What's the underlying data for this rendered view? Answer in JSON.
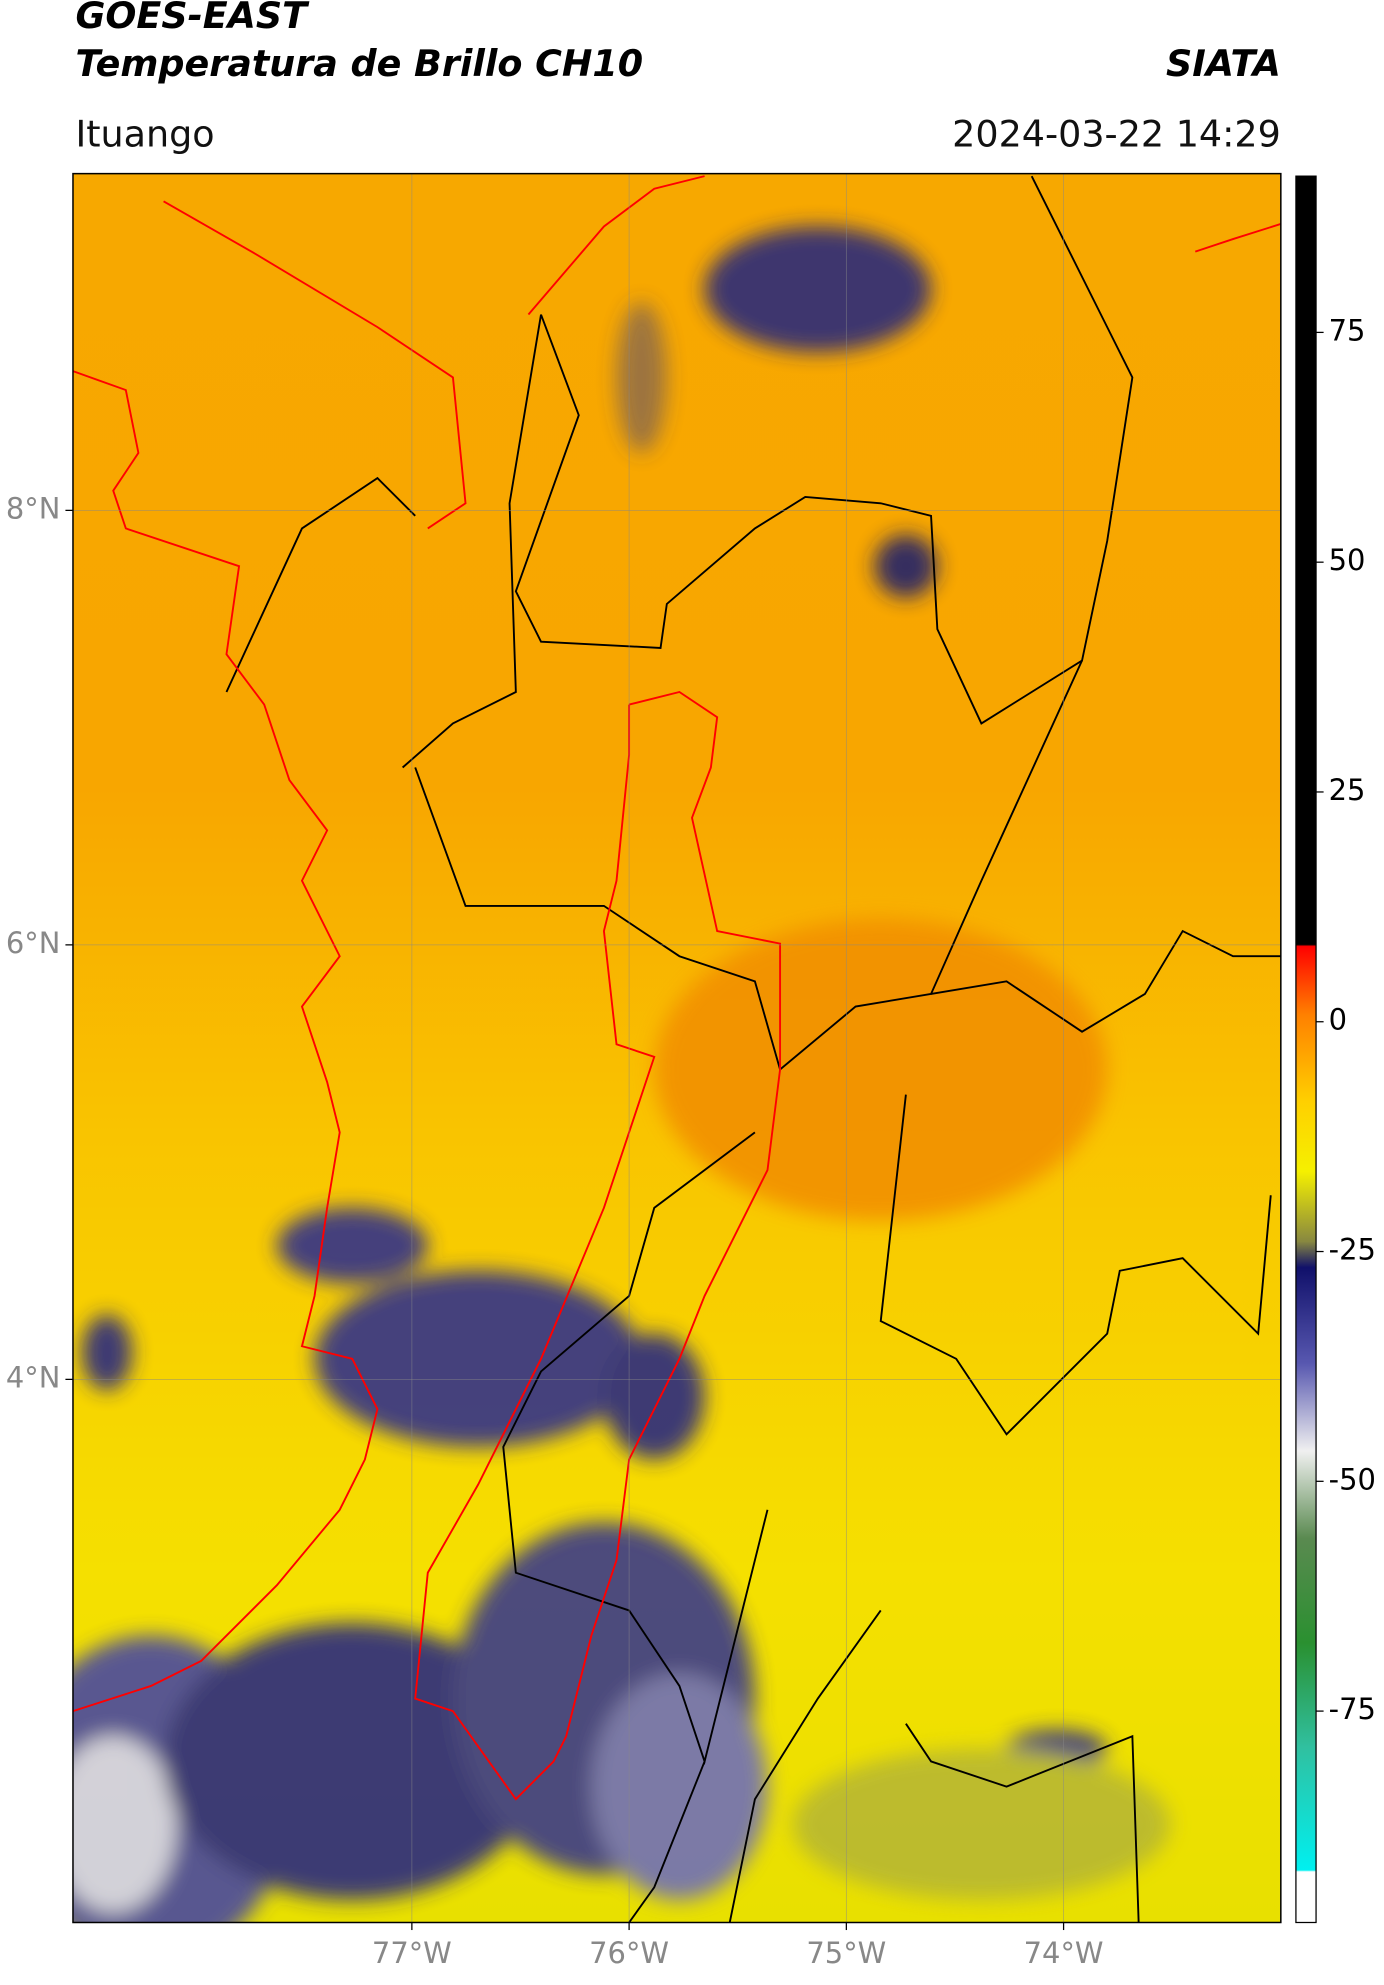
{
  "header": {
    "title": "GOES-EAST",
    "subtitle": "Temperatura de Brillo CH10",
    "source": "SIATA",
    "location": "Ituango",
    "datetime": "2024-03-22 14:29"
  },
  "map": {
    "xlim": [
      -78.56,
      -73.0
    ],
    "ylim": [
      1.5,
      9.55
    ],
    "xticks": [
      {
        "value": -77,
        "label": "77°W"
      },
      {
        "value": -76,
        "label": "76°W"
      },
      {
        "value": -75,
        "label": "75°W"
      },
      {
        "value": -74,
        "label": "74°W"
      }
    ],
    "yticks": [
      {
        "value": 8,
        "label": "8°N"
      },
      {
        "value": 6,
        "label": "6°N"
      },
      {
        "value": 4,
        "label": "4°N"
      }
    ],
    "grid": true
  },
  "colorbar": {
    "lim": [
      -98,
      92
    ],
    "ticks": [
      75,
      50,
      25,
      0,
      -25,
      -50,
      -75
    ]
  }
}
